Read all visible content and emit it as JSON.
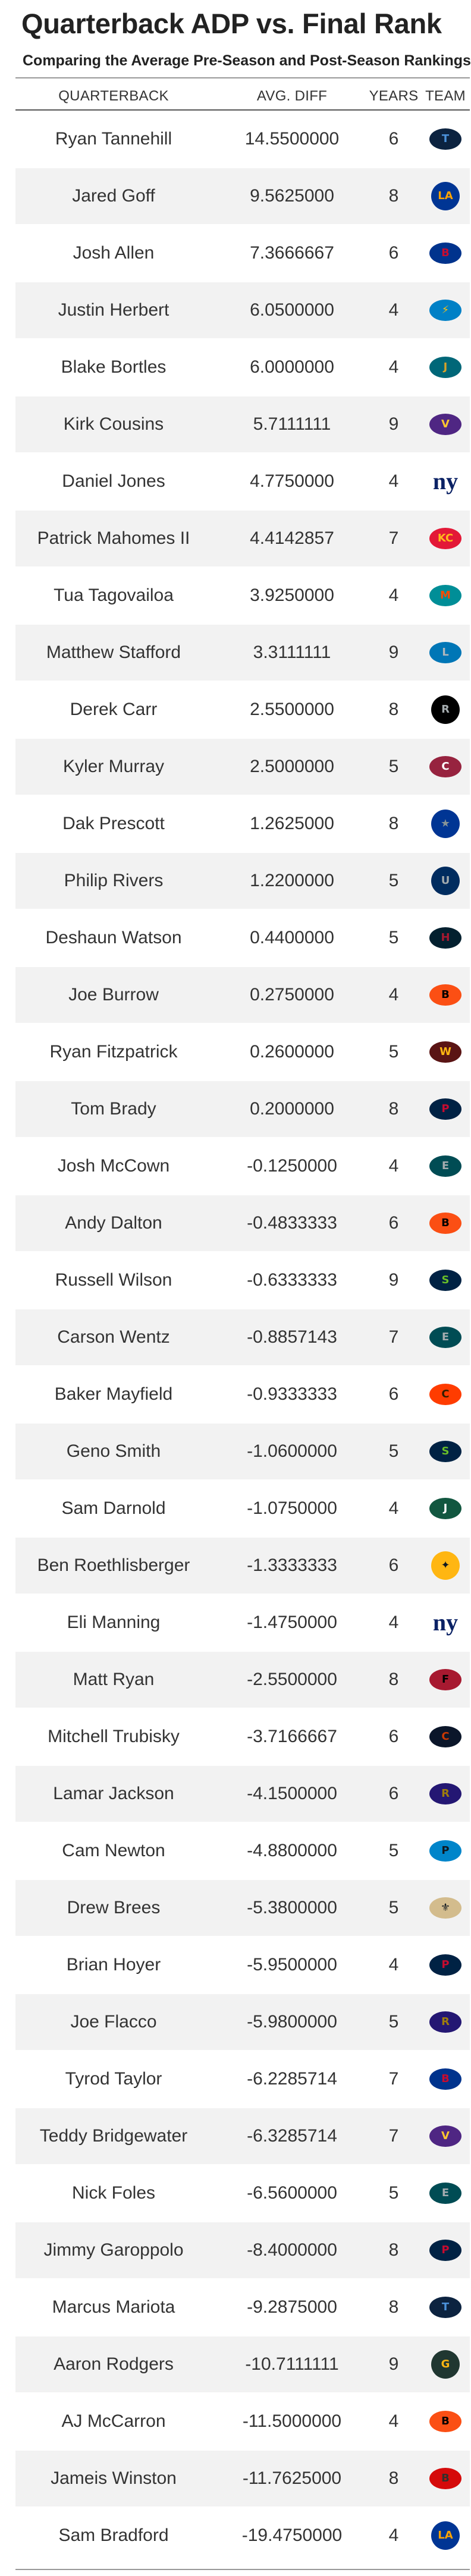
{
  "title": "Quarterback ADP vs. Final Rank",
  "subtitle": "Comparing the Average Pre-Season and Post-Season Rankings",
  "columns": {
    "quarterback": "QUARTERBACK",
    "avg_diff": "AVG. DIFF",
    "years": "YEARS",
    "team": "TEAM"
  },
  "rows": [
    {
      "name": "Ryan Tannehill",
      "diff": "14.5500000",
      "years": "6",
      "team_icon": "titans-logo-icon",
      "color": "#0c2340",
      "accent": "#4b92db"
    },
    {
      "name": "Jared Goff",
      "diff": "9.5625000",
      "years": "8",
      "team_icon": "rams-logo-icon",
      "color": "#003594",
      "accent": "#ffa300"
    },
    {
      "name": "Josh Allen",
      "diff": "7.3666667",
      "years": "6",
      "team_icon": "bills-logo-icon",
      "color": "#00338d",
      "accent": "#c60c30"
    },
    {
      "name": "Justin Herbert",
      "diff": "6.0500000",
      "years": "4",
      "team_icon": "chargers-logo-icon",
      "color": "#0080c6",
      "accent": "#ffc20e"
    },
    {
      "name": "Blake Bortles",
      "diff": "6.0000000",
      "years": "4",
      "team_icon": "jaguars-logo-icon",
      "color": "#006778",
      "accent": "#d7a22a"
    },
    {
      "name": "Kirk Cousins",
      "diff": "5.7111111",
      "years": "9",
      "team_icon": "vikings-logo-icon",
      "color": "#4f2683",
      "accent": "#ffc62f"
    },
    {
      "name": "Daniel Jones",
      "diff": "4.7750000",
      "years": "4",
      "team_icon": "giants-logo-icon",
      "color": "#0b2265",
      "accent": "#a71930"
    },
    {
      "name": "Patrick Mahomes II",
      "diff": "4.4142857",
      "years": "7",
      "team_icon": "chiefs-logo-icon",
      "color": "#e31837",
      "accent": "#ffb81c"
    },
    {
      "name": "Tua Tagovailoa",
      "diff": "3.9250000",
      "years": "4",
      "team_icon": "dolphins-logo-icon",
      "color": "#008e97",
      "accent": "#fc4c02"
    },
    {
      "name": "Matthew Stafford",
      "diff": "3.3111111",
      "years": "9",
      "team_icon": "lions-logo-icon",
      "color": "#0076b6",
      "accent": "#b0b7bc"
    },
    {
      "name": "Derek Carr",
      "diff": "2.5500000",
      "years": "8",
      "team_icon": "raiders-logo-icon",
      "color": "#000000",
      "accent": "#a5acaf"
    },
    {
      "name": "Kyler Murray",
      "diff": "2.5000000",
      "years": "5",
      "team_icon": "cardinals-logo-icon",
      "color": "#97233f",
      "accent": "#ffffff"
    },
    {
      "name": "Dak Prescott",
      "diff": "1.2625000",
      "years": "8",
      "team_icon": "cowboys-logo-icon",
      "color": "#003594",
      "accent": "#869397"
    },
    {
      "name": "Philip Rivers",
      "diff": "1.2200000",
      "years": "5",
      "team_icon": "colts-logo-icon",
      "color": "#002c5f",
      "accent": "#a2aaad"
    },
    {
      "name": "Deshaun Watson",
      "diff": "0.4400000",
      "years": "5",
      "team_icon": "texans-logo-icon",
      "color": "#03202f",
      "accent": "#a71930"
    },
    {
      "name": "Joe Burrow",
      "diff": "0.2750000",
      "years": "4",
      "team_icon": "bengals-logo-icon",
      "color": "#fb4f14",
      "accent": "#000000"
    },
    {
      "name": "Ryan Fitzpatrick",
      "diff": "0.2600000",
      "years": "5",
      "team_icon": "washington-logo-icon",
      "color": "#5a1414",
      "accent": "#ffb612"
    },
    {
      "name": "Tom Brady",
      "diff": "0.2000000",
      "years": "8",
      "team_icon": "patriots-logo-icon",
      "color": "#002244",
      "accent": "#c60c30"
    },
    {
      "name": "Josh McCown",
      "diff": "-0.1250000",
      "years": "4",
      "team_icon": "eagles-logo-icon",
      "color": "#004c54",
      "accent": "#a5acaf"
    },
    {
      "name": "Andy Dalton",
      "diff": "-0.4833333",
      "years": "6",
      "team_icon": "bengals-logo-icon",
      "color": "#fb4f14",
      "accent": "#000000"
    },
    {
      "name": "Russell Wilson",
      "diff": "-0.6333333",
      "years": "9",
      "team_icon": "seahawks-logo-icon",
      "color": "#002244",
      "accent": "#69be28"
    },
    {
      "name": "Carson Wentz",
      "diff": "-0.8857143",
      "years": "7",
      "team_icon": "eagles-logo-icon",
      "color": "#004c54",
      "accent": "#a5acaf"
    },
    {
      "name": "Baker Mayfield",
      "diff": "-0.9333333",
      "years": "6",
      "team_icon": "browns-logo-icon",
      "color": "#ff3c00",
      "accent": "#311d00"
    },
    {
      "name": "Geno Smith",
      "diff": "-1.0600000",
      "years": "5",
      "team_icon": "seahawks-logo-icon",
      "color": "#002244",
      "accent": "#69be28"
    },
    {
      "name": "Sam Darnold",
      "diff": "-1.0750000",
      "years": "4",
      "team_icon": "jets-logo-icon",
      "color": "#125740",
      "accent": "#ffffff"
    },
    {
      "name": "Ben Roethlisberger",
      "diff": "-1.3333333",
      "years": "6",
      "team_icon": "steelers-logo-icon",
      "color": "#ffb612",
      "accent": "#101820"
    },
    {
      "name": "Eli Manning",
      "diff": "-1.4750000",
      "years": "4",
      "team_icon": "giants-logo-icon",
      "color": "#0b2265",
      "accent": "#a71930"
    },
    {
      "name": "Matt Ryan",
      "diff": "-2.5500000",
      "years": "8",
      "team_icon": "falcons-logo-icon",
      "color": "#a71930",
      "accent": "#000000"
    },
    {
      "name": "Mitchell Trubisky",
      "diff": "-3.7166667",
      "years": "6",
      "team_icon": "bears-logo-icon",
      "color": "#0b162a",
      "accent": "#c83803"
    },
    {
      "name": "Lamar Jackson",
      "diff": "-4.1500000",
      "years": "6",
      "team_icon": "ravens-logo-icon",
      "color": "#241773",
      "accent": "#9e7c0c"
    },
    {
      "name": "Cam Newton",
      "diff": "-4.8800000",
      "years": "5",
      "team_icon": "panthers-logo-icon",
      "color": "#0085ca",
      "accent": "#101820"
    },
    {
      "name": "Drew Brees",
      "diff": "-5.3800000",
      "years": "5",
      "team_icon": "saints-logo-icon",
      "color": "#d3bc8d",
      "accent": "#101820"
    },
    {
      "name": "Brian Hoyer",
      "diff": "-5.9500000",
      "years": "4",
      "team_icon": "patriots-logo-icon",
      "color": "#002244",
      "accent": "#c60c30"
    },
    {
      "name": "Joe Flacco",
      "diff": "-5.9800000",
      "years": "5",
      "team_icon": "ravens-logo-icon",
      "color": "#241773",
      "accent": "#9e7c0c"
    },
    {
      "name": "Tyrod Taylor",
      "diff": "-6.2285714",
      "years": "7",
      "team_icon": "bills-logo-icon",
      "color": "#00338d",
      "accent": "#c60c30"
    },
    {
      "name": "Teddy Bridgewater",
      "diff": "-6.3285714",
      "years": "7",
      "team_icon": "vikings-logo-icon",
      "color": "#4f2683",
      "accent": "#ffc62f"
    },
    {
      "name": "Nick Foles",
      "diff": "-6.5600000",
      "years": "5",
      "team_icon": "eagles-logo-icon",
      "color": "#004c54",
      "accent": "#a5acaf"
    },
    {
      "name": "Jimmy Garoppolo",
      "diff": "-8.4000000",
      "years": "8",
      "team_icon": "patriots-logo-icon",
      "color": "#002244",
      "accent": "#c60c30"
    },
    {
      "name": "Marcus Mariota",
      "diff": "-9.2875000",
      "years": "8",
      "team_icon": "titans-logo-icon",
      "color": "#0c2340",
      "accent": "#4b92db"
    },
    {
      "name": "Aaron Rodgers",
      "diff": "-10.7111111",
      "years": "9",
      "team_icon": "packers-logo-icon",
      "color": "#203731",
      "accent": "#ffb612"
    },
    {
      "name": "AJ McCarron",
      "diff": "-11.5000000",
      "years": "4",
      "team_icon": "bengals-logo-icon",
      "color": "#fb4f14",
      "accent": "#000000"
    },
    {
      "name": "Jameis Winston",
      "diff": "-11.7625000",
      "years": "8",
      "team_icon": "buccaneers-logo-icon",
      "color": "#d50a0a",
      "accent": "#34302b"
    },
    {
      "name": "Sam Bradford",
      "diff": "-19.4750000",
      "years": "4",
      "team_icon": "rams-logo-icon",
      "color": "#003594",
      "accent": "#ffa300"
    }
  ]
}
